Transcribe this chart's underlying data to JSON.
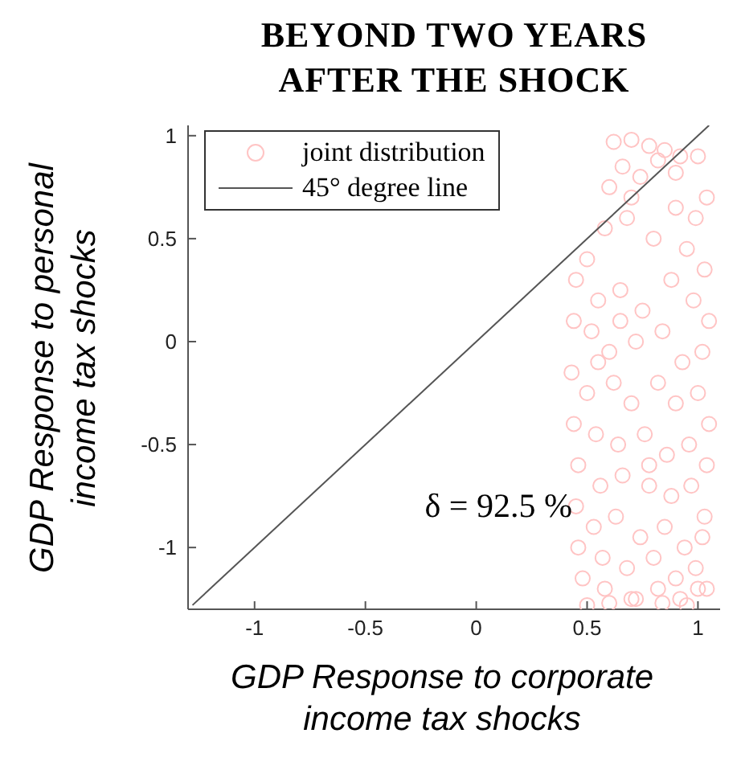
{
  "chart_data": {
    "type": "scatter",
    "title": "BEYOND TWO YEARS AFTER THE SHOCK",
    "xlabel": "GDP Response to corporate income tax shocks",
    "ylabel": "GDP Response to personal income tax shocks",
    "xlim": [
      -1.3,
      1.1
    ],
    "ylim": [
      -1.3,
      1.05
    ],
    "xticks": [
      -1,
      -0.5,
      0,
      0.5,
      1
    ],
    "yticks": [
      -1,
      -0.5,
      0,
      0.5,
      1
    ],
    "grid": false,
    "legend": "top left",
    "marker": "circle",
    "annotations": [
      "δ = 92.5 %"
    ],
    "series": [
      {
        "name": "joint distribution",
        "type": "scatter",
        "color": "#ffc4c4",
        "x": [
          0.62,
          0.7,
          0.78,
          0.85,
          0.92,
          0.66,
          0.74,
          0.9,
          1.0,
          1.04,
          0.5,
          0.58,
          0.68,
          0.8,
          0.95,
          1.03,
          0.45,
          0.55,
          0.65,
          0.75,
          0.88,
          0.98,
          1.05,
          0.44,
          0.52,
          0.6,
          0.72,
          0.84,
          0.93,
          1.02,
          0.43,
          0.5,
          0.62,
          0.7,
          0.82,
          0.9,
          1.0,
          1.05,
          0.44,
          0.54,
          0.64,
          0.76,
          0.86,
          0.96,
          1.04,
          0.46,
          0.56,
          0.66,
          0.78,
          0.88,
          0.97,
          1.03,
          0.45,
          0.53,
          0.63,
          0.74,
          0.85,
          0.94,
          1.02,
          0.46,
          0.57,
          0.68,
          0.8,
          0.9,
          0.99,
          1.04,
          0.48,
          0.58,
          0.7,
          0.82,
          0.92,
          1.0,
          0.5,
          0.6,
          0.72,
          0.84,
          0.95,
          0.55,
          0.65,
          0.78,
          0.9,
          0.99,
          0.6,
          0.7,
          0.82
        ],
        "values": [
          0.97,
          0.98,
          0.95,
          0.93,
          0.9,
          0.85,
          0.8,
          0.82,
          0.9,
          0.7,
          0.4,
          0.55,
          0.6,
          0.5,
          0.45,
          0.35,
          0.3,
          0.2,
          0.25,
          0.15,
          0.3,
          0.2,
          0.1,
          0.1,
          0.05,
          -0.05,
          0.0,
          0.05,
          -0.1,
          -0.05,
          -0.15,
          -0.25,
          -0.2,
          -0.3,
          -0.2,
          -0.3,
          -0.25,
          -0.4,
          -0.4,
          -0.45,
          -0.5,
          -0.45,
          -0.55,
          -0.5,
          -0.6,
          -0.6,
          -0.7,
          -0.65,
          -0.7,
          -0.75,
          -0.7,
          -0.85,
          -0.8,
          -0.9,
          -0.85,
          -0.95,
          -0.9,
          -1.0,
          -0.95,
          -1.0,
          -1.05,
          -1.1,
          -1.05,
          -1.15,
          -1.1,
          -1.2,
          -1.15,
          -1.2,
          -1.25,
          -1.2,
          -1.25,
          -1.2,
          -1.28,
          -1.27,
          -1.25,
          -1.27,
          -1.28,
          -0.1,
          0.1,
          -0.6,
          0.65,
          0.6,
          0.75,
          0.7,
          0.88
        ]
      },
      {
        "name": "45° degree line",
        "type": "line",
        "color": "#555555",
        "marker": "none",
        "x": [
          -1.28,
          1.05
        ],
        "values": [
          -1.28,
          1.05
        ]
      }
    ]
  }
}
